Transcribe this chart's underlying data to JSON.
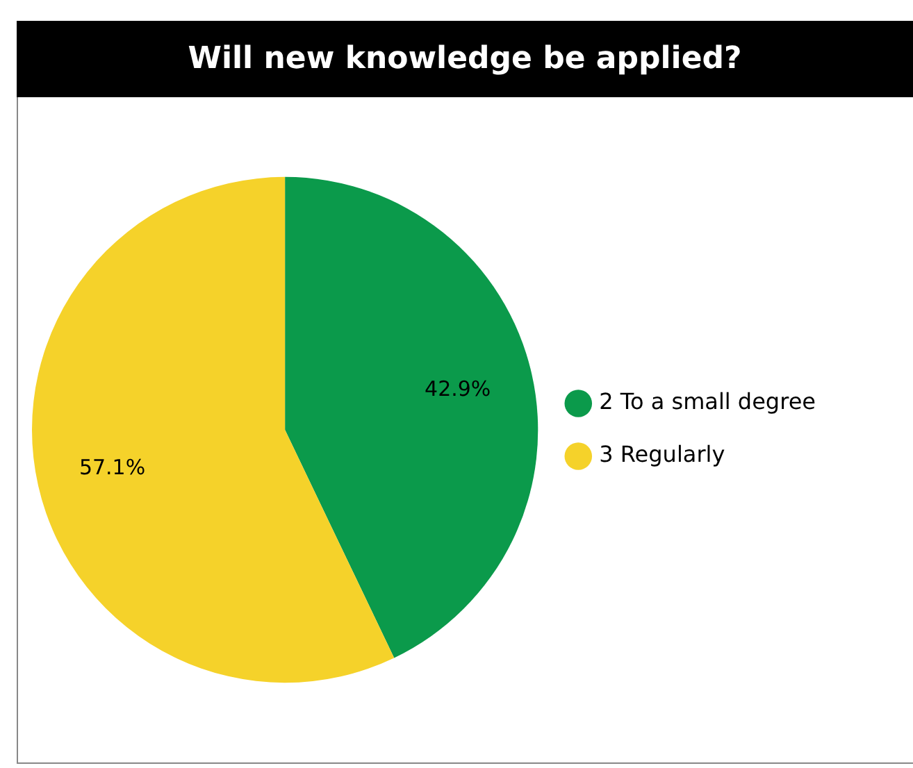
{
  "chart_data": {
    "type": "pie",
    "title": "Will new knowledge be applied?",
    "categories": [
      "2 To a small degree",
      "3 Regularly"
    ],
    "values": [
      42.9,
      57.1
    ],
    "colors": [
      "#0b9a4b",
      "#f5d22a"
    ],
    "value_labels": [
      "42.9%",
      "57.1%"
    ],
    "legend": "right"
  }
}
